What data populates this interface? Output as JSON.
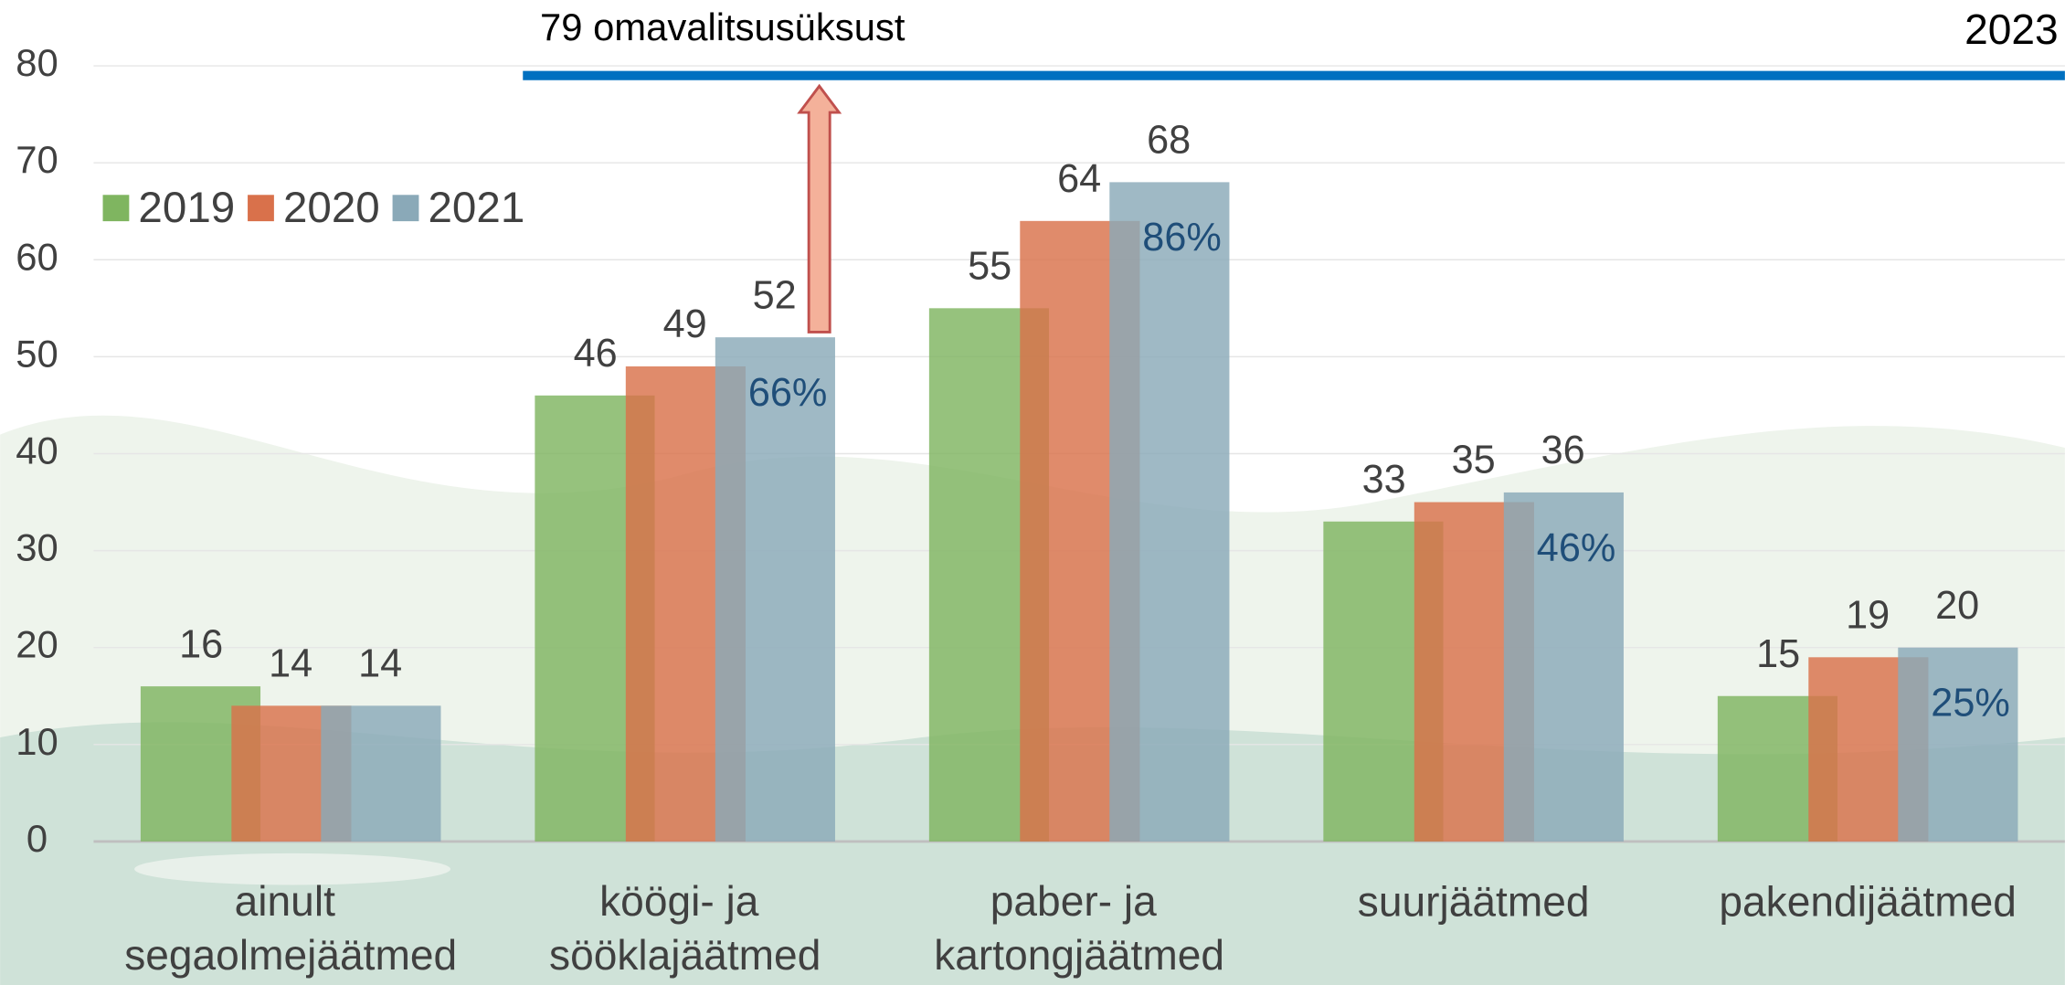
{
  "chart_data": {
    "type": "bar",
    "categories": [
      "ainult segaolmejäätmed",
      "köögi- ja sööklajäätmed",
      "paber- ja kartongjäätmed",
      "suurjäätmed",
      "pakendijäätmed"
    ],
    "series": [
      {
        "name": "2019",
        "color": "#7fb560",
        "values": [
          16,
          46,
          55,
          33,
          15
        ]
      },
      {
        "name": "2020",
        "color": "#d9714b",
        "values": [
          14,
          49,
          64,
          35,
          19
        ]
      },
      {
        "name": "2021",
        "color": "#8aa9b8",
        "values": [
          14,
          52,
          68,
          36,
          20
        ],
        "percent_labels": [
          null,
          "66%",
          "86%",
          "46%",
          "25%"
        ]
      }
    ],
    "ylim": [
      0,
      80
    ],
    "yticks": [
      0,
      10,
      20,
      30,
      40,
      50,
      60,
      70,
      80
    ],
    "grid": true,
    "legend": "top-left",
    "reference_line": {
      "value": 79,
      "label": "79 omavalitsusüksust",
      "name": "2023",
      "color": "#0070c0"
    }
  }
}
